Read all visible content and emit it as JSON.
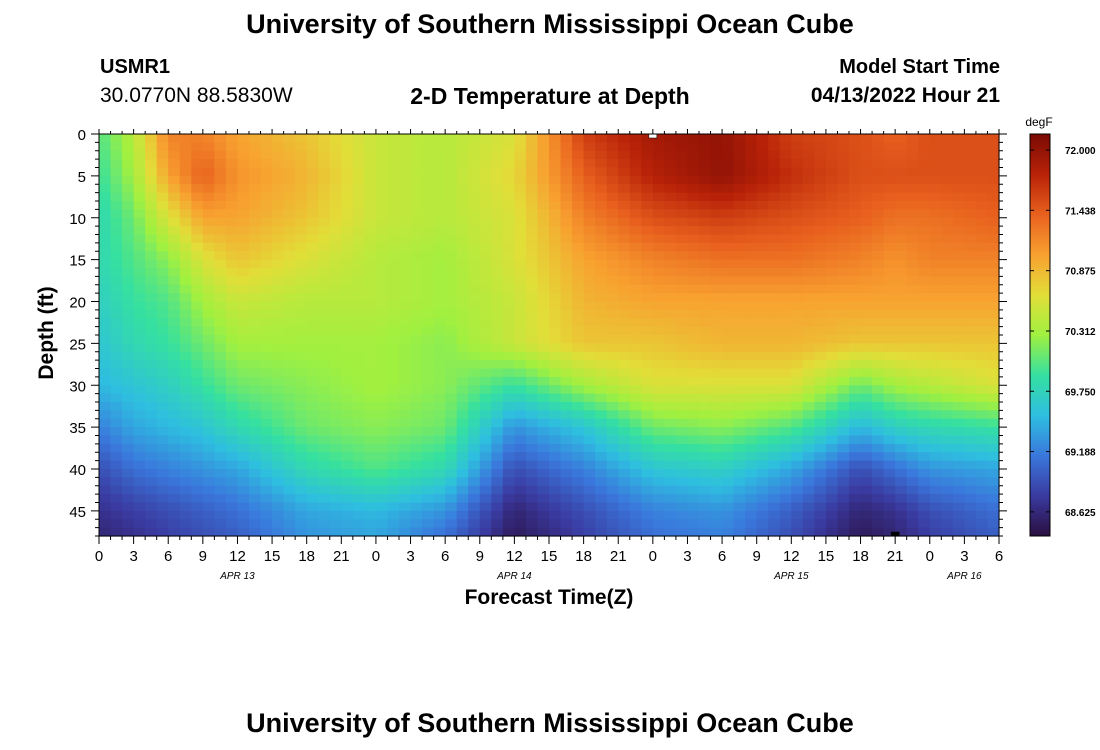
{
  "header": {
    "title": "University of Southern Mississippi Ocean Cube",
    "station_id": "USMR1",
    "coordinates": "30.0770N  88.5830W",
    "subtitle": "2-D Temperature at Depth",
    "model_start_label": "Model Start Time",
    "model_start_value": "04/13/2022 Hour 21"
  },
  "footer": {
    "title": "University of Southern Mississippi Ocean Cube"
  },
  "chart_data": {
    "type": "heatmap",
    "title": "2-D Temperature at Depth",
    "xlabel": "Forecast Time(Z)",
    "ylabel": "Depth (ft)",
    "x_tick_labels": [
      "0",
      "3",
      "6",
      "9",
      "12",
      "15",
      "18",
      "21",
      "0",
      "3",
      "6",
      "9",
      "12",
      "15",
      "18",
      "21",
      "0",
      "3",
      "6",
      "9",
      "12",
      "15",
      "18",
      "21",
      "0",
      "3",
      "6"
    ],
    "date_labels": [
      {
        "label": "APR 13",
        "tick": 4
      },
      {
        "label": "APR 14",
        "tick": 12
      },
      {
        "label": "APR 15",
        "tick": 20
      },
      {
        "label": "APR 16",
        "tick": 25
      }
    ],
    "y_ticks": [
      0,
      5,
      10,
      15,
      20,
      25,
      30,
      35,
      40,
      45
    ],
    "ylim": [
      0,
      48
    ],
    "xlim_hours": [
      0,
      78
    ],
    "colorbar": {
      "unit": "degF",
      "ticks": [
        "72.000",
        "71.438",
        "70.875",
        "70.312",
        "69.750",
        "69.188",
        "68.625"
      ],
      "vmin": 68.4,
      "vmax": 72.15
    },
    "colormap": [
      "#2a0f40",
      "#3a3aa0",
      "#3a78dc",
      "#2ebee0",
      "#35e0a0",
      "#a0f040",
      "#e2de38",
      "#f8a030",
      "#e8601e",
      "#b82208",
      "#7a0a04"
    ],
    "temperature_profile": {
      "note": "Temperature grid: 17 forecast hours (columns) x 11 depths (rows), degF",
      "hours": [
        0,
        3,
        6,
        9,
        12,
        18,
        24,
        30,
        36,
        42,
        48,
        54,
        60,
        66,
        69,
        72,
        78
      ],
      "depths": [
        0,
        5,
        10,
        15,
        20,
        25,
        30,
        35,
        40,
        45,
        48
      ],
      "values": [
        [
          70.0,
          70.4,
          71.2,
          71.2,
          71.0,
          70.8,
          70.5,
          70.4,
          70.6,
          71.6,
          71.9,
          72.0,
          71.6,
          71.5,
          71.4,
          71.5,
          71.5
        ],
        [
          69.9,
          70.3,
          71.0,
          71.4,
          71.1,
          70.9,
          70.5,
          70.4,
          70.7,
          71.4,
          71.8,
          72.0,
          71.7,
          71.5,
          71.5,
          71.5,
          71.5
        ],
        [
          69.8,
          70.1,
          70.6,
          71.0,
          71.0,
          70.8,
          70.5,
          70.4,
          70.6,
          71.2,
          71.5,
          71.6,
          71.5,
          71.4,
          71.3,
          71.3,
          71.4
        ],
        [
          69.8,
          70.0,
          70.2,
          70.6,
          70.8,
          70.6,
          70.4,
          70.3,
          70.6,
          71.0,
          71.2,
          71.3,
          71.3,
          71.2,
          71.1,
          71.2,
          71.2
        ],
        [
          69.7,
          69.9,
          70.0,
          70.3,
          70.5,
          70.4,
          70.4,
          70.3,
          70.5,
          70.9,
          71.0,
          71.0,
          71.0,
          71.0,
          71.0,
          71.0,
          71.0
        ],
        [
          69.6,
          69.8,
          69.9,
          70.1,
          70.3,
          70.3,
          70.3,
          70.2,
          70.5,
          70.8,
          70.8,
          70.9,
          70.9,
          70.8,
          70.8,
          70.8,
          70.8
        ],
        [
          69.5,
          69.6,
          69.7,
          69.9,
          70.1,
          70.2,
          70.3,
          70.2,
          69.9,
          70.3,
          70.6,
          70.6,
          70.6,
          70.1,
          70.3,
          70.4,
          70.6
        ],
        [
          69.2,
          69.4,
          69.5,
          69.6,
          69.8,
          70.1,
          70.2,
          70.1,
          69.3,
          69.6,
          70.1,
          70.2,
          70.0,
          69.5,
          69.7,
          69.8,
          69.9
        ],
        [
          68.9,
          69.1,
          69.2,
          69.3,
          69.4,
          69.8,
          70.0,
          69.8,
          68.9,
          69.2,
          69.6,
          69.7,
          69.4,
          68.9,
          69.1,
          69.3,
          69.4
        ],
        [
          68.7,
          68.8,
          68.9,
          69.0,
          69.1,
          69.4,
          69.5,
          69.3,
          68.6,
          68.9,
          69.2,
          69.3,
          69.0,
          68.6,
          68.7,
          68.9,
          69.1
        ],
        [
          68.6,
          68.7,
          68.8,
          68.9,
          69.0,
          69.3,
          69.4,
          69.1,
          68.5,
          68.8,
          69.1,
          69.2,
          68.9,
          68.5,
          68.6,
          68.8,
          69.0
        ]
      ]
    },
    "markers": [
      {
        "hour": 48,
        "depth": 0,
        "color": "#ffffff"
      },
      {
        "hour": 69,
        "depth": 48,
        "color": "#000000"
      }
    ]
  }
}
